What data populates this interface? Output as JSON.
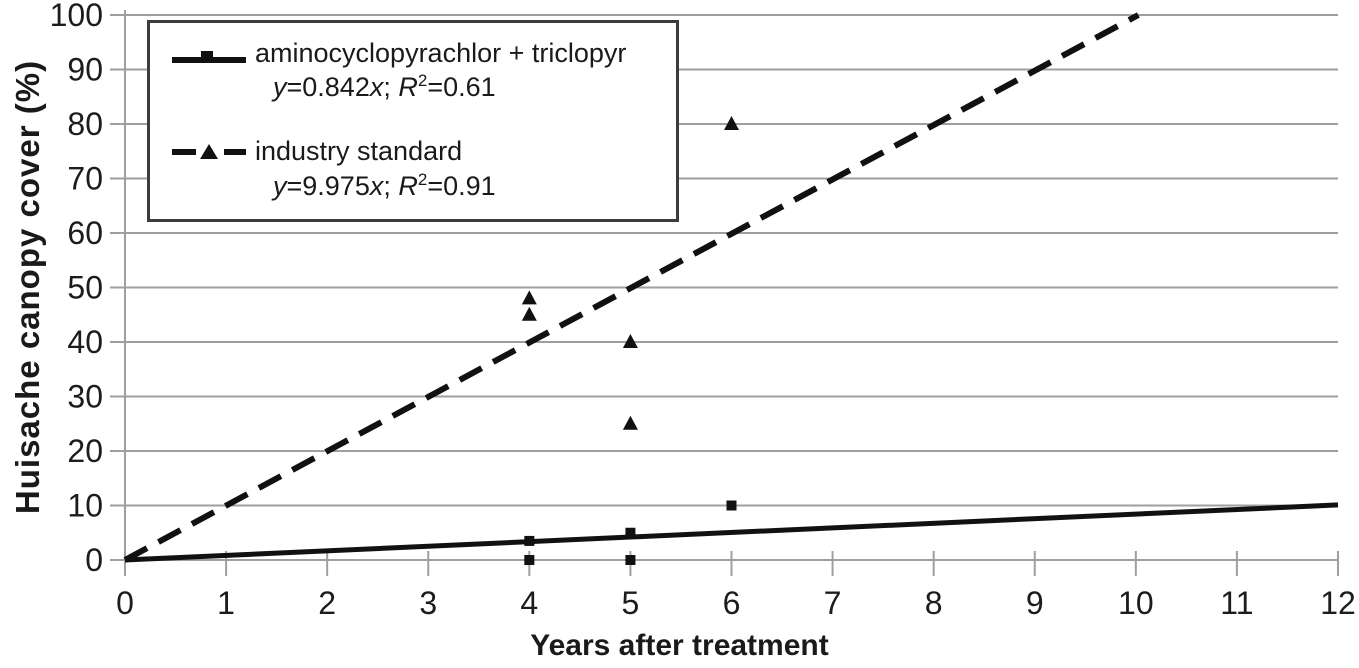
{
  "chart_data": {
    "type": "scatter",
    "title": "",
    "xlabel": "Years after treatment",
    "ylabel": "Huisache canopy cover (%)",
    "xlim": [
      0,
      12
    ],
    "ylim": [
      0,
      100
    ],
    "x_ticks": [
      0,
      1,
      2,
      3,
      4,
      5,
      6,
      7,
      8,
      9,
      10,
      11,
      12
    ],
    "y_ticks": [
      0,
      10,
      20,
      30,
      40,
      50,
      60,
      70,
      80,
      90,
      100
    ],
    "grid": "horizontal",
    "legend_position": "top-left",
    "colors": {
      "ink": "#111111",
      "grid": "#9f9f9f"
    },
    "series": [
      {
        "name": "aminocyclopyrachlor + triclopyr",
        "marker": "square",
        "line": "solid",
        "equation": "y=0.842x; R²=0.61",
        "trend": {
          "slope": 0.842,
          "x_range": [
            0,
            12
          ]
        },
        "points": [
          [
            4,
            0
          ],
          [
            4,
            3.5
          ],
          [
            5,
            0
          ],
          [
            5,
            5
          ],
          [
            6,
            10
          ]
        ]
      },
      {
        "name": "industry standard",
        "marker": "triangle",
        "line": "dashed",
        "equation": "y=9.975x; R²=0.91",
        "trend": {
          "slope": 9.975,
          "x_range": [
            0,
            10.025
          ]
        },
        "points": [
          [
            4,
            45
          ],
          [
            4,
            48
          ],
          [
            5,
            25
          ],
          [
            5,
            40
          ],
          [
            6,
            80
          ]
        ]
      }
    ]
  },
  "legend": {
    "entries": [
      {
        "eq": {
          "v1": "y",
          "b1": "=0.842",
          "v2": "x",
          "sep": "; ",
          "r": "R",
          "sup": "2",
          "b2": "=0.61"
        }
      },
      {
        "eq": {
          "v1": "y",
          "b1": "=9.975",
          "v2": "x",
          "sep": "; ",
          "r": "R",
          "sup": "2",
          "b2": "=0.91"
        }
      }
    ]
  }
}
